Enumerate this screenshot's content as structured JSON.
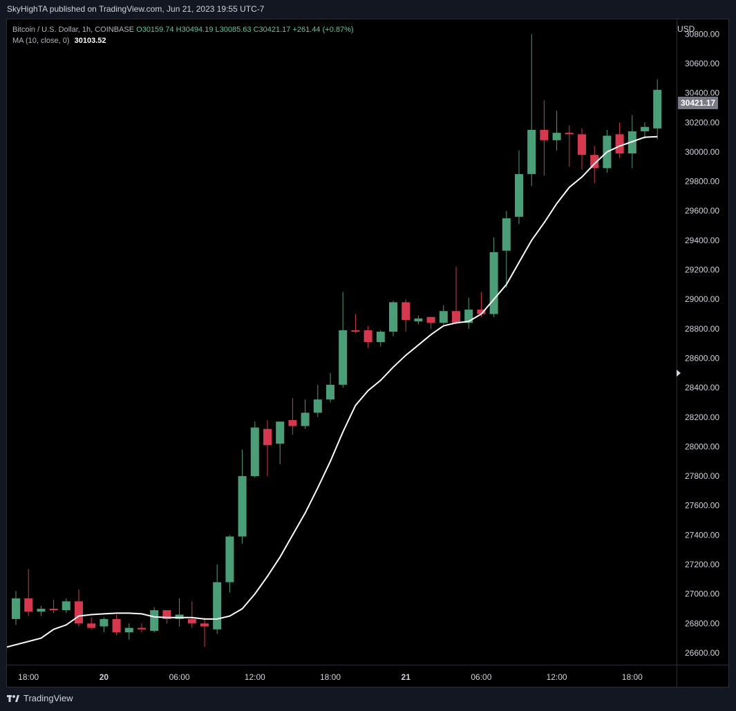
{
  "banner": "SkyHighTA published on TradingView.com, Jun 21, 2023 19:55 UTC-7",
  "legend": {
    "symbol": "Bitcoin / U.S. Dollar, 1h, COINBASE",
    "open": "O30159.74",
    "high": "H30494.19",
    "low": "L30085.63",
    "close": "C30421.17",
    "change": "+261.44 (+0.87%)",
    "ma_label": "MA (10, close, 0)",
    "ma_value": "30103.52"
  },
  "price_axis": {
    "currency": "USD",
    "last_price_label": "30421.17"
  },
  "footer": {
    "brand": "TradingView"
  },
  "colors": {
    "up": "#4a9e78",
    "down": "#d6384e",
    "ma": "#ffffff",
    "background": "#000000",
    "last_price_tag": "#787b86"
  },
  "chart_data": {
    "type": "candlestick",
    "symbol": "Bitcoin / U.S. Dollar",
    "interval": "1h",
    "ylim": [
      26520,
      30900
    ],
    "y_ticks": [
      26600,
      26800,
      27000,
      27200,
      27400,
      27600,
      27800,
      28000,
      28200,
      28400,
      28600,
      28800,
      29000,
      29200,
      29400,
      29600,
      29800,
      30000,
      30200,
      30400,
      30600,
      30800
    ],
    "y_tick_labels": [
      "26600.00",
      "26800.00",
      "27000.00",
      "27200.00",
      "27400.00",
      "27600.00",
      "27800.00",
      "28000.00",
      "28200.00",
      "28400.00",
      "28600.00",
      "28800.00",
      "29000.00",
      "29200.00",
      "29400.00",
      "29600.00",
      "29800.00",
      "30000.00",
      "30200.00",
      "30400.00",
      "30600.00",
      "30800.00"
    ],
    "x_tick_labels": [
      {
        "index": 1,
        "label": "18:00",
        "bold": false
      },
      {
        "index": 7,
        "label": "20",
        "bold": true
      },
      {
        "index": 13,
        "label": "06:00",
        "bold": false
      },
      {
        "index": 19,
        "label": "12:00",
        "bold": false
      },
      {
        "index": 25,
        "label": "18:00",
        "bold": false
      },
      {
        "index": 31,
        "label": "21",
        "bold": true
      },
      {
        "index": 37,
        "label": "06:00",
        "bold": false
      },
      {
        "index": 43,
        "label": "12:00",
        "bold": false
      },
      {
        "index": 49,
        "label": "18:00",
        "bold": false
      }
    ],
    "candles": [
      {
        "o": 26830,
        "h": 27020,
        "l": 26790,
        "c": 26970
      },
      {
        "o": 26970,
        "h": 27170,
        "l": 26850,
        "c": 26880
      },
      {
        "o": 26880,
        "h": 26920,
        "l": 26850,
        "c": 26900
      },
      {
        "o": 26900,
        "h": 26960,
        "l": 26870,
        "c": 26890
      },
      {
        "o": 26890,
        "h": 26970,
        "l": 26870,
        "c": 26950
      },
      {
        "o": 26950,
        "h": 27030,
        "l": 26780,
        "c": 26800
      },
      {
        "o": 26800,
        "h": 26840,
        "l": 26760,
        "c": 26770
      },
      {
        "o": 26780,
        "h": 26840,
        "l": 26740,
        "c": 26830
      },
      {
        "o": 26830,
        "h": 26860,
        "l": 26720,
        "c": 26740
      },
      {
        "o": 26740,
        "h": 26800,
        "l": 26690,
        "c": 26770
      },
      {
        "o": 26770,
        "h": 26800,
        "l": 26740,
        "c": 26760
      },
      {
        "o": 26750,
        "h": 26910,
        "l": 26740,
        "c": 26890
      },
      {
        "o": 26890,
        "h": 26880,
        "l": 26800,
        "c": 26830
      },
      {
        "o": 26830,
        "h": 26970,
        "l": 26780,
        "c": 26860
      },
      {
        "o": 26830,
        "h": 26950,
        "l": 26770,
        "c": 26800
      },
      {
        "o": 26800,
        "h": 26840,
        "l": 26640,
        "c": 26780
      },
      {
        "o": 26760,
        "h": 27200,
        "l": 26730,
        "c": 27080
      },
      {
        "o": 27080,
        "h": 27400,
        "l": 27010,
        "c": 27390
      },
      {
        "o": 27390,
        "h": 27980,
        "l": 27340,
        "c": 27800
      },
      {
        "o": 27800,
        "h": 28170,
        "l": 27790,
        "c": 28130
      },
      {
        "o": 28120,
        "h": 28180,
        "l": 27800,
        "c": 28010
      },
      {
        "o": 28020,
        "h": 28170,
        "l": 27880,
        "c": 28170
      },
      {
        "o": 28180,
        "h": 28330,
        "l": 28080,
        "c": 28140
      },
      {
        "o": 28140,
        "h": 28320,
        "l": 28120,
        "c": 28230
      },
      {
        "o": 28230,
        "h": 28420,
        "l": 28200,
        "c": 28320
      },
      {
        "o": 28320,
        "h": 28500,
        "l": 28300,
        "c": 28420
      },
      {
        "o": 28420,
        "h": 29050,
        "l": 28400,
        "c": 28790
      },
      {
        "o": 28790,
        "h": 28900,
        "l": 28770,
        "c": 28780
      },
      {
        "o": 28790,
        "h": 28820,
        "l": 28670,
        "c": 28710
      },
      {
        "o": 28710,
        "h": 28790,
        "l": 28680,
        "c": 28780
      },
      {
        "o": 28780,
        "h": 28990,
        "l": 28750,
        "c": 28980
      },
      {
        "o": 28980,
        "h": 29000,
        "l": 28780,
        "c": 28860
      },
      {
        "o": 28850,
        "h": 28890,
        "l": 28830,
        "c": 28870
      },
      {
        "o": 28880,
        "h": 28880,
        "l": 28800,
        "c": 28840
      },
      {
        "o": 28840,
        "h": 28960,
        "l": 28830,
        "c": 28920
      },
      {
        "o": 28920,
        "h": 29220,
        "l": 28830,
        "c": 28840
      },
      {
        "o": 28840,
        "h": 29010,
        "l": 28800,
        "c": 28930
      },
      {
        "o": 28930,
        "h": 29050,
        "l": 28880,
        "c": 28900
      },
      {
        "o": 28900,
        "h": 29420,
        "l": 28880,
        "c": 29320
      },
      {
        "o": 29330,
        "h": 29600,
        "l": 29080,
        "c": 29550
      },
      {
        "o": 29560,
        "h": 30010,
        "l": 29510,
        "c": 29850
      },
      {
        "o": 29850,
        "h": 30800,
        "l": 29770,
        "c": 30150
      },
      {
        "o": 30150,
        "h": 30350,
        "l": 29840,
        "c": 30080
      },
      {
        "o": 30080,
        "h": 30280,
        "l": 30010,
        "c": 30130
      },
      {
        "o": 30130,
        "h": 30180,
        "l": 29900,
        "c": 30120
      },
      {
        "o": 30120,
        "h": 30160,
        "l": 29880,
        "c": 29980
      },
      {
        "o": 29980,
        "h": 30040,
        "l": 29790,
        "c": 29890
      },
      {
        "o": 29890,
        "h": 30150,
        "l": 29860,
        "c": 30110
      },
      {
        "o": 30120,
        "h": 30200,
        "l": 29960,
        "c": 29990
      },
      {
        "o": 29990,
        "h": 30250,
        "l": 29890,
        "c": 30140
      },
      {
        "o": 30140,
        "h": 30200,
        "l": 30090,
        "c": 30170
      },
      {
        "o": 30159.74,
        "h": 30494.19,
        "l": 30085.63,
        "c": 30421.17
      }
    ],
    "ma": {
      "name": "MA (10, close, 0)",
      "values": [
        26640,
        26700,
        26760,
        26790,
        26850,
        26860,
        26865,
        26870,
        26870,
        26865,
        26845,
        26840,
        26840,
        26840,
        26830,
        26830,
        26850,
        26900,
        27000,
        27120,
        27250,
        27400,
        27550,
        27720,
        27900,
        28100,
        28280,
        28380,
        28450,
        28540,
        28620,
        28690,
        28760,
        28820,
        28840,
        28850,
        28900,
        29000,
        29100,
        29250,
        29400,
        29520,
        29650,
        29760,
        29830,
        29920,
        30000,
        30040,
        30070,
        30100,
        30103.52
      ]
    }
  }
}
